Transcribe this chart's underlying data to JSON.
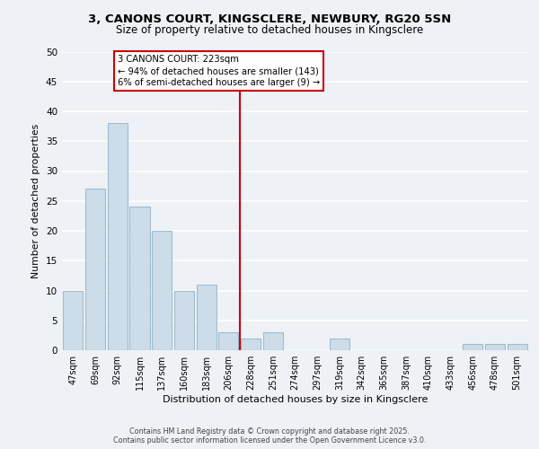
{
  "title1": "3, CANONS COURT, KINGSCLERE, NEWBURY, RG20 5SN",
  "title2": "Size of property relative to detached houses in Kingsclere",
  "xlabel": "Distribution of detached houses by size in Kingsclere",
  "ylabel": "Number of detached properties",
  "bar_labels": [
    "47sqm",
    "69sqm",
    "92sqm",
    "115sqm",
    "137sqm",
    "160sqm",
    "183sqm",
    "206sqm",
    "228sqm",
    "251sqm",
    "274sqm",
    "297sqm",
    "319sqm",
    "342sqm",
    "365sqm",
    "387sqm",
    "410sqm",
    "433sqm",
    "456sqm",
    "478sqm",
    "501sqm"
  ],
  "bar_values": [
    10,
    27,
    38,
    24,
    20,
    10,
    11,
    3,
    2,
    3,
    0,
    0,
    2,
    0,
    0,
    0,
    0,
    0,
    1,
    1,
    1
  ],
  "bar_color": "#ccdce8",
  "bar_edge_color": "#a0bcd0",
  "vline_color": "#cc0000",
  "annotation_title": "3 CANONS COURT: 223sqm",
  "annotation_line1": "← 94% of detached houses are smaller (143)",
  "annotation_line2": "6% of semi-detached houses are larger (9) →",
  "annotation_box_color": "#ffffff",
  "annotation_box_edge": "#cc0000",
  "ylim": [
    0,
    50
  ],
  "yticks": [
    0,
    5,
    10,
    15,
    20,
    25,
    30,
    35,
    40,
    45,
    50
  ],
  "bg_color": "#eef2f7",
  "grid_color": "#ffffff",
  "footer1": "Contains HM Land Registry data © Crown copyright and database right 2025.",
  "footer2": "Contains public sector information licensed under the Open Government Licence v3.0."
}
